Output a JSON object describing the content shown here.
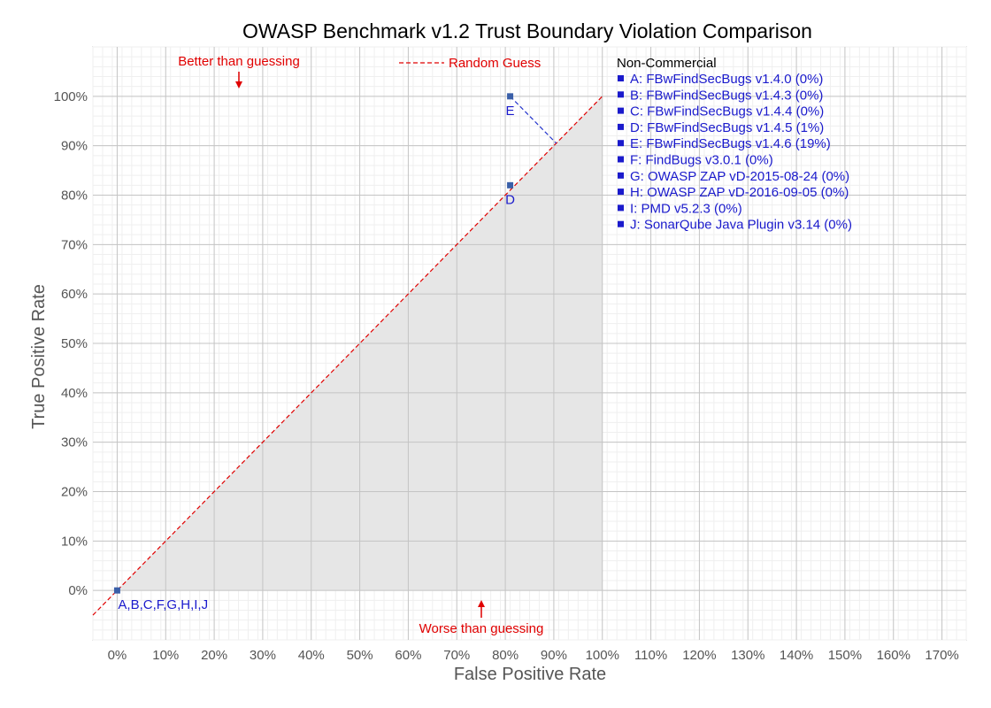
{
  "chart_data": {
    "type": "scatter",
    "title": "OWASP Benchmark v1.2 Trust Boundary Violation Comparison",
    "xlabel": "False Positive Rate",
    "ylabel": "True Positive Rate",
    "xlim": [
      -5,
      175
    ],
    "ylim": [
      -10,
      110
    ],
    "x_ticks": [
      "0%",
      "10%",
      "20%",
      "30%",
      "40%",
      "50%",
      "60%",
      "70%",
      "80%",
      "90%",
      "100%",
      "110%",
      "120%",
      "130%",
      "140%",
      "150%",
      "160%",
      "170%"
    ],
    "y_ticks": [
      "0%",
      "10%",
      "20%",
      "30%",
      "40%",
      "50%",
      "60%",
      "70%",
      "80%",
      "90%",
      "100%"
    ],
    "grid": true,
    "random_guess_line": {
      "label": "Random Guess",
      "from": [
        -5,
        -5
      ],
      "to": [
        100,
        100
      ]
    },
    "points": [
      {
        "label": "A,B,C,F,G,H,I,J",
        "x": 0,
        "y": 0
      },
      {
        "label": "D",
        "x": 81,
        "y": 82
      },
      {
        "label": "E",
        "x": 81,
        "y": 100
      }
    ],
    "annotations": {
      "better": "Better than guessing",
      "worse": "Worse than guessing"
    },
    "legend": {
      "placement": "right",
      "header": "Non-Commercial",
      "items": [
        "A: FBwFindSecBugs v1.4.0 (0%)",
        "B: FBwFindSecBugs v1.4.3 (0%)",
        "C: FBwFindSecBugs v1.4.4 (0%)",
        "D: FBwFindSecBugs v1.4.5 (1%)",
        "E: FBwFindSecBugs v1.4.6 (19%)",
        "F: FindBugs v3.0.1 (0%)",
        "G: OWASP ZAP vD-2015-08-24 (0%)",
        "H: OWASP ZAP vD-2016-09-05 (0%)",
        "I:  PMD v5.2.3 (0%)",
        "J: SonarQube Java Plugin v3.14 (0%)"
      ]
    },
    "colors": {
      "points": "#3a5fa8",
      "labels": "#1a1acc",
      "guess_line": "#e00000",
      "shaded": "#e6e6e6"
    }
  }
}
